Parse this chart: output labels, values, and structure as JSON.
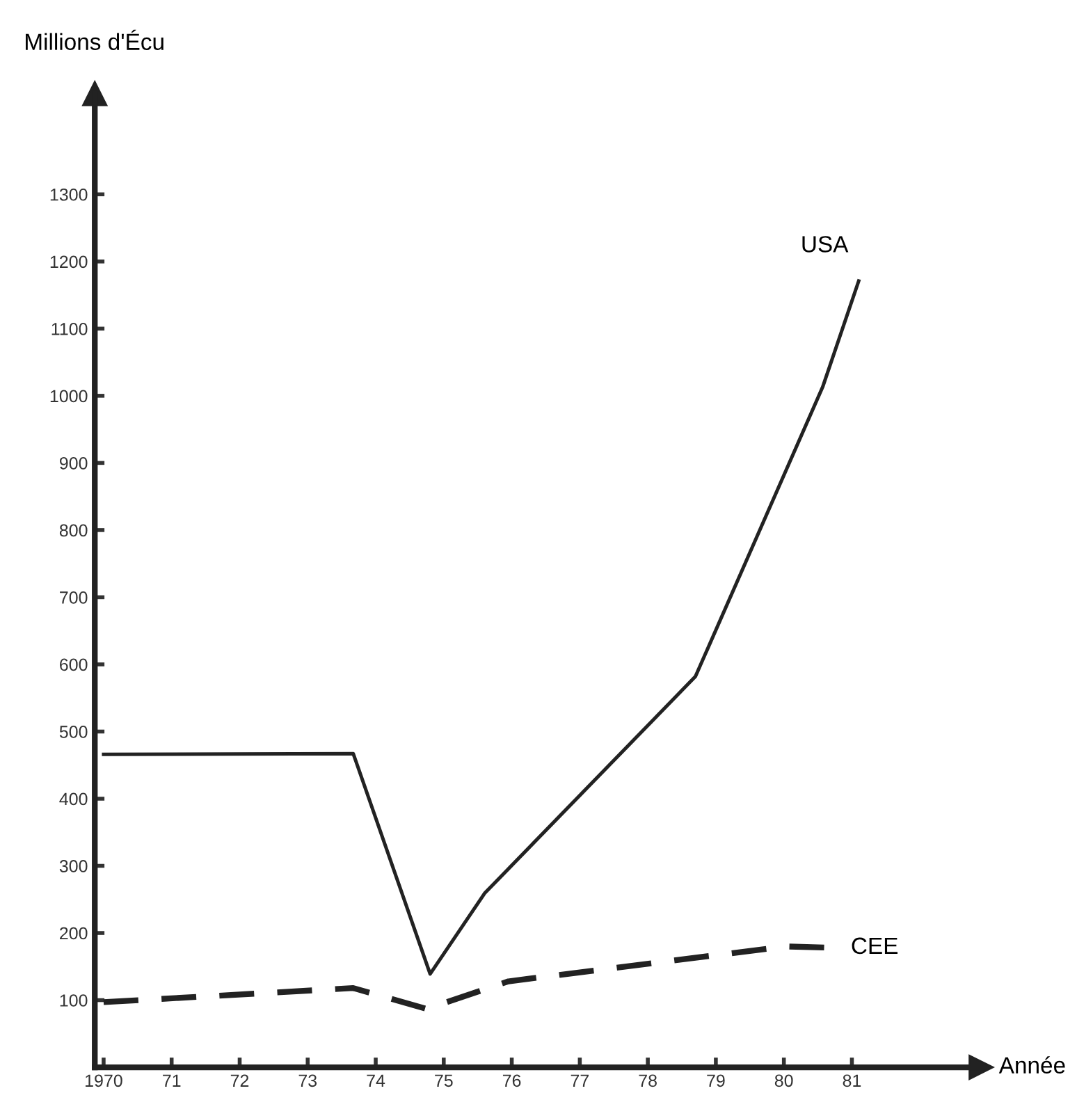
{
  "chart_data": {
    "type": "line",
    "ylabel": "Millions d'Écu",
    "xlabel": "Année",
    "xlim": [
      1969.87,
      1982.9
    ],
    "ylim": [
      0,
      1450
    ],
    "xticks": [
      {
        "value": 1970,
        "label": "1970"
      },
      {
        "value": 1971,
        "label": "71"
      },
      {
        "value": 1972,
        "label": "72"
      },
      {
        "value": 1973,
        "label": "73"
      },
      {
        "value": 1974,
        "label": "74"
      },
      {
        "value": 1975,
        "label": "75"
      },
      {
        "value": 1976,
        "label": "76"
      },
      {
        "value": 1977,
        "label": "77"
      },
      {
        "value": 1978,
        "label": "78"
      },
      {
        "value": 1979,
        "label": "79"
      },
      {
        "value": 1980,
        "label": "80"
      },
      {
        "value": 1981,
        "label": "81"
      }
    ],
    "yticks": [
      100,
      200,
      300,
      400,
      500,
      600,
      700,
      800,
      900,
      1000,
      1100,
      1200,
      1300
    ],
    "grid": false,
    "legend": false,
    "marker": "none",
    "series": [
      {
        "name": "USA",
        "color": "#222222",
        "line_style": "solid",
        "x": [
          1970,
          1973.67,
          1974.8,
          1975.6,
          1978.7,
          1980.57,
          1981.1
        ],
        "values": [
          466,
          467,
          139,
          259,
          582,
          1013,
          1171
        ]
      },
      {
        "name": "CEE",
        "color": "#222222",
        "line_style": "dashed",
        "x": [
          1970,
          1973.67,
          1974.75,
          1975.95,
          1980.02,
          1980.7
        ],
        "values": [
          97,
          118,
          87,
          128,
          180,
          178
        ]
      }
    ]
  }
}
